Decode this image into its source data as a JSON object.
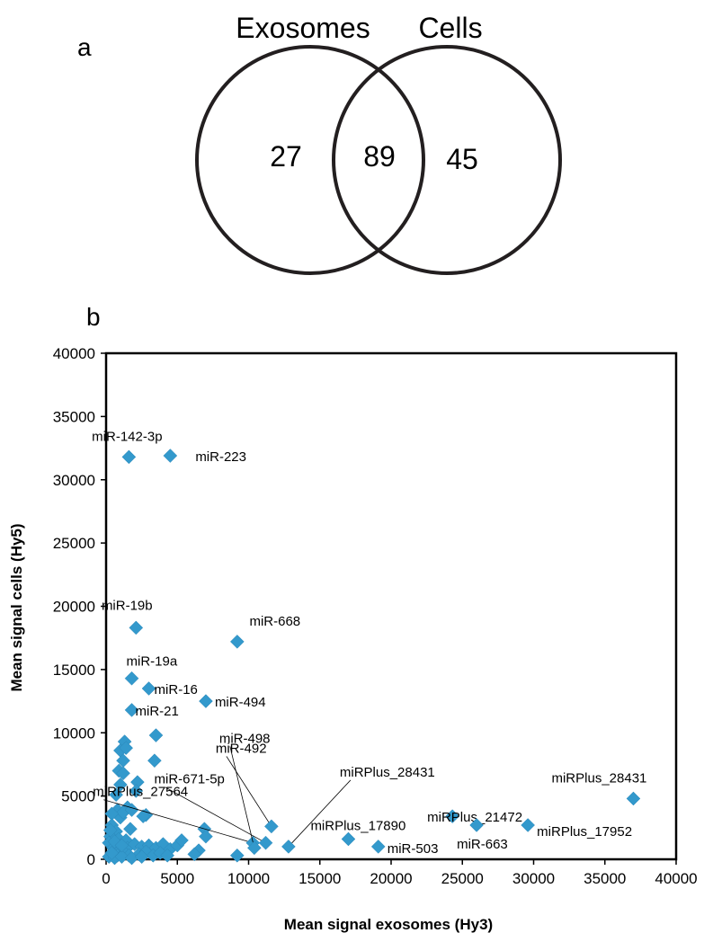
{
  "panels": {
    "a": {
      "label": "a"
    },
    "b": {
      "label": "b"
    }
  },
  "venn": {
    "left_title": "Exosomes",
    "right_title": "Cells",
    "left_only": "27",
    "overlap": "89",
    "right_only": "45"
  },
  "chart_data": {
    "type": "scatter",
    "title": "",
    "xlabel": "Mean signal exosomes (Hy3)",
    "ylabel": "Mean signal cells (Hy5)",
    "xlim": [
      0,
      40000
    ],
    "ylim": [
      0,
      40000
    ],
    "xticks": [
      0,
      5000,
      10000,
      15000,
      20000,
      25000,
      30000,
      35000,
      40000
    ],
    "yticks": [
      0,
      5000,
      10000,
      15000,
      20000,
      25000,
      30000,
      35000,
      40000
    ],
    "xtick_labels": [
      "0",
      "5000",
      "10000",
      "15000",
      "20000",
      "25000",
      "30000",
      "35000",
      "40000"
    ],
    "ytick_labels": [
      "0",
      "5000",
      "10000",
      "15000",
      "20000",
      "25000",
      "30000",
      "35000",
      "40000"
    ],
    "grid": false,
    "marker": "diamond",
    "marker_color": "#3399cc",
    "labeled_points": [
      {
        "label": "miR-142-3p",
        "x": 1600,
        "y": 31800
      },
      {
        "label": "miR-223",
        "x": 4500,
        "y": 31900
      },
      {
        "label": "miR-19b",
        "x": 2100,
        "y": 18300
      },
      {
        "label": "miR-668",
        "x": 9200,
        "y": 17200
      },
      {
        "label": "miR-19a",
        "x": 1800,
        "y": 14300
      },
      {
        "label": "miR-16",
        "x": 3000,
        "y": 13500
      },
      {
        "label": "miR-494",
        "x": 7000,
        "y": 12500
      },
      {
        "label": "miR-21",
        "x": 1800,
        "y": 11800
      },
      {
        "label": "miRPlus_28431",
        "x": 37000,
        "y": 4800
      },
      {
        "label": "miRPlus_21472",
        "x": 24300,
        "y": 3400
      },
      {
        "label": "miR-663",
        "x": 26000,
        "y": 2700
      },
      {
        "label": "miRPlus_17952",
        "x": 29600,
        "y": 2700
      },
      {
        "label": "miRPlus_17890",
        "x": 17000,
        "y": 1600
      },
      {
        "label": "miR-503",
        "x": 19100,
        "y": 1000
      },
      {
        "label": "miRPlus_27564",
        "x": 10300,
        "y": 1300
      },
      {
        "label": "miR-671-5p",
        "x": 11200,
        "y": 1300
      },
      {
        "label": "miR-492",
        "x": 11600,
        "y": 2600
      },
      {
        "label": "miR-498",
        "x": 10400,
        "y": 900
      },
      {
        "label": "miRPlus_28431",
        "x": 12800,
        "y": 1000
      }
    ],
    "other_points": [
      [
        1300,
        9300
      ],
      [
        1000,
        8600
      ],
      [
        1400,
        8800
      ],
      [
        3500,
        9800
      ],
      [
        1200,
        7800
      ],
      [
        3400,
        7800
      ],
      [
        900,
        7000
      ],
      [
        1200,
        6800
      ],
      [
        2200,
        6100
      ],
      [
        2100,
        5400
      ],
      [
        700,
        5100
      ],
      [
        1000,
        5900
      ],
      [
        1500,
        4100
      ],
      [
        800,
        3900
      ],
      [
        1000,
        3300
      ],
      [
        1200,
        3700
      ],
      [
        2800,
        3500
      ],
      [
        2600,
        3400
      ],
      [
        400,
        3600
      ],
      [
        1800,
        3900
      ],
      [
        400,
        2700
      ],
      [
        700,
        2200
      ],
      [
        300,
        1800
      ],
      [
        900,
        1600
      ],
      [
        1400,
        1500
      ],
      [
        200,
        1300
      ],
      [
        500,
        900
      ],
      [
        1000,
        700
      ],
      [
        1500,
        900
      ],
      [
        2000,
        1200
      ],
      [
        2500,
        1000
      ],
      [
        3000,
        1100
      ],
      [
        3500,
        900
      ],
      [
        4000,
        1200
      ],
      [
        4500,
        800
      ],
      [
        5000,
        1100
      ],
      [
        5300,
        1500
      ],
      [
        6500,
        700
      ],
      [
        6900,
        2400
      ],
      [
        7000,
        1800
      ],
      [
        800,
        300
      ],
      [
        1300,
        500
      ],
      [
        1600,
        300
      ],
      [
        2300,
        400
      ],
      [
        2800,
        600
      ],
      [
        3300,
        300
      ],
      [
        3800,
        500
      ],
      [
        4300,
        300
      ],
      [
        6200,
        400
      ],
      [
        9200,
        300
      ],
      [
        200,
        200
      ],
      [
        600,
        100
      ],
      [
        1100,
        200
      ],
      [
        1800,
        100
      ],
      [
        400,
        500
      ],
      [
        2500,
        200
      ],
      [
        1700,
        2400
      ],
      [
        300,
        2300
      ],
      [
        600,
        1400
      ],
      [
        1100,
        1100
      ]
    ]
  }
}
